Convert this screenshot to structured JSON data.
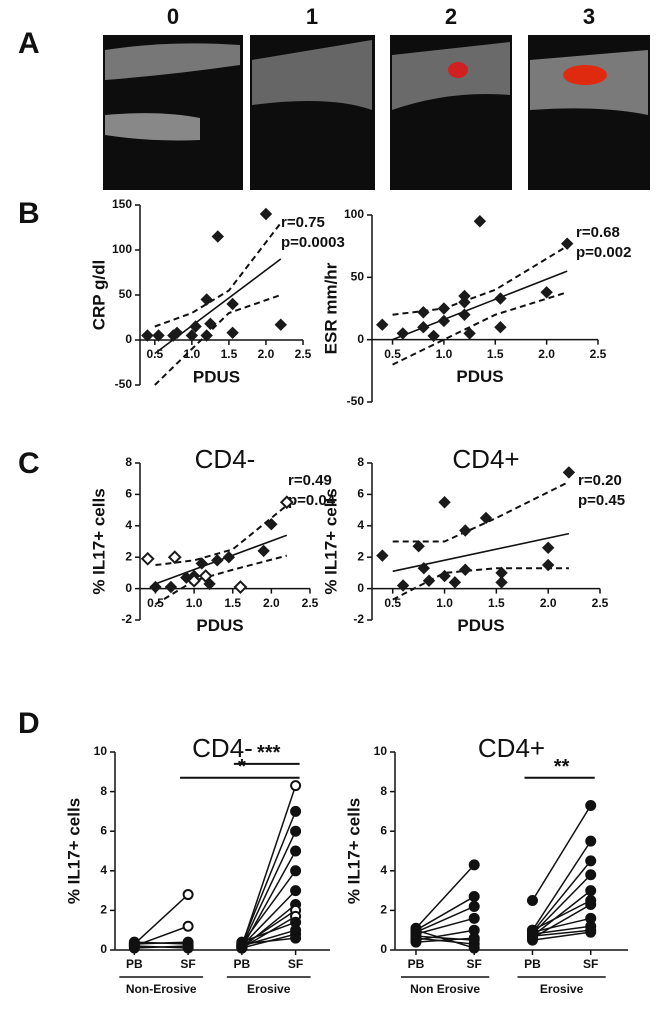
{
  "figure": {
    "panel_labels": [
      "A",
      "B",
      "C",
      "D"
    ],
    "grades": [
      "0",
      "1",
      "2",
      "3"
    ]
  },
  "chart_data": [
    {
      "type": "scatter",
      "y_label": "CRP g/dl",
      "x_label": "PDUS",
      "annotations": [
        "r=0.75",
        "p=0.0003"
      ],
      "xlim": [
        0.3,
        2.5
      ],
      "xticks": [
        0.5,
        {
          "value": 1,
          "label": "1.0"
        },
        1.5,
        {
          "value": 2,
          "label": "2.0"
        },
        2.5
      ],
      "ylim": [
        -50,
        150
      ],
      "yticks": [
        -50,
        0,
        50,
        100,
        150
      ],
      "series": [
        {
          "color": "#1a1a1a",
          "marker": "filled",
          "x": [
            0.4,
            0.55,
            0.75,
            0.8,
            1.0,
            1.05,
            1.2,
            1.2,
            1.25,
            1.35,
            1.55,
            1.55,
            2.0,
            2.2
          ],
          "values": [
            5,
            5,
            5,
            8,
            5,
            15,
            45,
            5,
            18,
            115,
            40,
            8,
            140,
            17
          ]
        }
      ],
      "fit": {
        "x": [
          0.5,
          2.2
        ],
        "y": [
          -15,
          90
        ]
      },
      "ci": {
        "x": [
          0.5,
          1.0,
          1.5,
          2.2
        ],
        "upper": [
          15,
          30,
          55,
          130
        ],
        "lower": [
          -50,
          -10,
          30,
          50
        ]
      }
    },
    {
      "type": "scatter",
      "y_label": "ESR mm/hr",
      "x_label": "PDUS",
      "annotations": [
        "r=0.68",
        "p=0.002"
      ],
      "xlim": [
        0.3,
        2.5
      ],
      "xticks": [
        0.5,
        {
          "value": 1,
          "label": "1.0"
        },
        1.5,
        {
          "value": 2,
          "label": "2.0"
        },
        2.5
      ],
      "ylim": [
        -50,
        100
      ],
      "yticks": [
        -50,
        0,
        50,
        100
      ],
      "series": [
        {
          "color": "#1a1a1a",
          "marker": "filled",
          "x": [
            0.4,
            0.6,
            0.8,
            0.8,
            0.9,
            1.0,
            1.0,
            1.2,
            1.2,
            1.2,
            1.25,
            1.35,
            1.55,
            1.55,
            2.0,
            2.2
          ],
          "values": [
            12,
            5,
            10,
            22,
            3,
            15,
            25,
            30,
            35,
            20,
            5,
            95,
            33,
            10,
            38,
            77
          ]
        }
      ],
      "fit": {
        "x": [
          0.5,
          2.2
        ],
        "y": [
          0,
          55
        ]
      },
      "ci": {
        "x": [
          0.5,
          1.0,
          1.5,
          2.2
        ],
        "upper": [
          20,
          25,
          40,
          75
        ],
        "lower": [
          -20,
          0,
          20,
          38
        ]
      }
    },
    {
      "type": "scatter",
      "title": "CD4-",
      "y_label": "% IL17+ cells",
      "x_label": "PDUS",
      "annotations": [
        "r=0.49",
        "p=0.04"
      ],
      "xlim": [
        0.3,
        2.5
      ],
      "xticks": [
        0.5,
        {
          "value": 1,
          "label": "1.0"
        },
        1.5,
        {
          "value": 2,
          "label": "2.0"
        },
        2.5
      ],
      "ylim": [
        -2,
        8
      ],
      "yticks": [
        -2,
        0,
        2,
        4,
        6,
        8
      ],
      "series": [
        {
          "color": "#1a1a1a",
          "marker": "filled",
          "x": [
            0.5,
            0.7,
            0.9,
            1.0,
            1.1,
            1.2,
            1.3,
            1.45,
            1.9,
            2.0
          ],
          "values": [
            0.1,
            0.1,
            0.7,
            0.8,
            1.6,
            0.3,
            1.8,
            2.0,
            2.4,
            4.1
          ]
        },
        {
          "color": "#1a1a1a",
          "marker": "open",
          "x": [
            0.4,
            0.75,
            1.0,
            1.15,
            1.6,
            2.2
          ],
          "values": [
            1.9,
            2.0,
            0.5,
            0.8,
            0.1,
            5.5
          ]
        }
      ],
      "fit": {
        "x": [
          0.5,
          2.2
        ],
        "y": [
          0.3,
          3.4
        ]
      },
      "ci": {
        "x": [
          0.5,
          1.0,
          1.5,
          2.2
        ],
        "upper": [
          1.5,
          1.8,
          2.5,
          5.3
        ],
        "lower": [
          -1,
          0.5,
          1.2,
          2.1
        ]
      }
    },
    {
      "type": "scatter",
      "title": "CD4+",
      "y_label": "% IL17+ cells",
      "x_label": "PDUS",
      "annotations": [
        "r=0.20",
        "p=0.45"
      ],
      "xlim": [
        0.3,
        2.5
      ],
      "xticks": [
        0.5,
        {
          "value": 1,
          "label": "1.0"
        },
        1.5,
        {
          "value": 2,
          "label": "2.0"
        },
        2.5
      ],
      "ylim": [
        -2,
        8
      ],
      "yticks": [
        -2,
        0,
        2,
        4,
        6,
        8
      ],
      "series": [
        {
          "color": "#1a1a1a",
          "marker": "filled",
          "x": [
            0.4,
            0.6,
            0.75,
            0.8,
            0.85,
            1.0,
            1.0,
            1.1,
            1.2,
            1.2,
            1.4,
            1.55,
            1.55,
            2.0,
            2.0,
            2.2
          ],
          "values": [
            2.1,
            0.2,
            2.7,
            1.3,
            0.5,
            5.5,
            0.8,
            0.4,
            3.7,
            1.2,
            4.5,
            1.0,
            0.4,
            2.6,
            1.5,
            7.4
          ]
        }
      ],
      "fit": {
        "x": [
          0.5,
          2.2
        ],
        "y": [
          1.1,
          3.5
        ]
      },
      "ci": {
        "x": [
          0.5,
          1.0,
          1.5,
          2.2
        ],
        "upper": [
          3.0,
          3.0,
          4.5,
          6.8
        ],
        "lower": [
          -0.7,
          1.0,
          1.3,
          1.3
        ]
      }
    },
    {
      "type": "paired",
      "title": "CD4-",
      "y_label": "% IL17+ cells",
      "ylim": [
        0,
        10
      ],
      "yticks": [
        0,
        2,
        4,
        6,
        8,
        10
      ],
      "groups": [
        {
          "name": "Non-Erosive",
          "categories": [
            "PB",
            "SF"
          ],
          "pairs": [
            {
              "values": [
                0.3,
                2.8
              ],
              "marker": "open"
            },
            {
              "values": [
                0.2,
                1.2
              ],
              "marker": "open"
            },
            {
              "values": [
                0.4,
                0.3
              ]
            },
            {
              "values": [
                0.1,
                0.2
              ]
            },
            {
              "values": [
                0.3,
                0.4
              ]
            },
            {
              "values": [
                0.2,
                0.1
              ]
            }
          ]
        },
        {
          "name": "Erosive",
          "categories": [
            "PB",
            "SF"
          ],
          "pairs": [
            {
              "values": [
                0.2,
                8.3
              ],
              "marker": "open"
            },
            {
              "values": [
                0.3,
                7.0
              ]
            },
            {
              "values": [
                0.2,
                6.0
              ]
            },
            {
              "values": [
                0.1,
                5.0
              ]
            },
            {
              "values": [
                0.3,
                4.0
              ]
            },
            {
              "values": [
                0.2,
                3.0
              ]
            },
            {
              "values": [
                0.1,
                2.3
              ]
            },
            {
              "values": [
                0.2,
                2.0
              ],
              "marker": "open"
            },
            {
              "values": [
                0.1,
                1.7
              ],
              "marker": "open"
            },
            {
              "values": [
                0.4,
                1.4
              ]
            },
            {
              "values": [
                0.2,
                1.0
              ]
            },
            {
              "values": [
                0.1,
                0.8
              ]
            },
            {
              "values": [
                0.3,
                0.6
              ]
            }
          ]
        }
      ],
      "significance": [
        {
          "text": "***",
          "y": 9.4,
          "from": [
            1,
            0
          ],
          "to": [
            1,
            1
          ]
        },
        {
          "text": "*",
          "y": 8.7,
          "from": [
            0,
            1
          ],
          "to": [
            1,
            1
          ]
        }
      ]
    },
    {
      "type": "paired",
      "title": "CD4+",
      "y_label": "% IL17+ cells",
      "ylim": [
        0,
        10
      ],
      "yticks": [
        0,
        2,
        4,
        6,
        8,
        10
      ],
      "groups": [
        {
          "name": "Non Erosive",
          "categories": [
            "PB",
            "SF"
          ],
          "pairs": [
            {
              "values": [
                1.1,
                4.3
              ]
            },
            {
              "values": [
                1.0,
                2.7
              ]
            },
            {
              "values": [
                0.9,
                2.2
              ]
            },
            {
              "values": [
                0.8,
                1.6
              ]
            },
            {
              "values": [
                0.5,
                1.0
              ]
            },
            {
              "values": [
                0.7,
                0.5
              ]
            },
            {
              "values": [
                0.6,
                0.3
              ]
            },
            {
              "values": [
                1.0,
                0.1
              ]
            },
            {
              "values": [
                0.4,
                0.6
              ]
            }
          ]
        },
        {
          "name": "Erosive",
          "categories": [
            "PB",
            "SF"
          ],
          "pairs": [
            {
              "values": [
                2.5,
                7.3
              ]
            },
            {
              "values": [
                1.0,
                5.5
              ]
            },
            {
              "values": [
                0.9,
                4.5
              ]
            },
            {
              "values": [
                0.8,
                3.8
              ]
            },
            {
              "values": [
                0.7,
                3.0
              ]
            },
            {
              "values": [
                1.0,
                2.5
              ]
            },
            {
              "values": [
                0.6,
                2.3
              ]
            },
            {
              "values": [
                0.9,
                1.6
              ]
            },
            {
              "values": [
                0.8,
                1.2
              ]
            },
            {
              "values": [
                0.7,
                1.0
              ]
            },
            {
              "values": [
                0.5,
                0.9
              ]
            }
          ]
        }
      ],
      "significance": [
        {
          "text": "**",
          "y": 8.7,
          "from": [
            1,
            0
          ],
          "to": [
            1,
            1
          ]
        }
      ]
    }
  ]
}
